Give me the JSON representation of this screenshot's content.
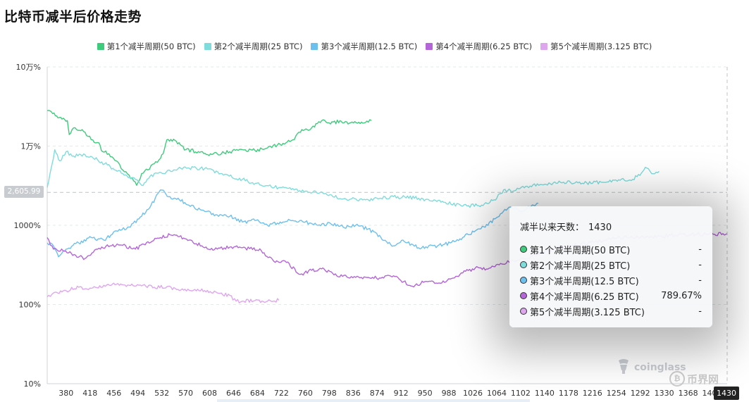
{
  "title": "比特币减半后价格走势",
  "legend": [
    {
      "label": "第1个减半周期(50 BTC)",
      "color": "#3ecb7c"
    },
    {
      "label": "第2个减半周期(25 BTC)",
      "color": "#7fdcdc"
    },
    {
      "label": "第3个减半周期(12.5 BTC)",
      "color": "#6cc0ee"
    },
    {
      "label": "第4个减半周期(6.25 BTC)",
      "color": "#b565d9"
    },
    {
      "label": "第5个减半周期(3.125 BTC)",
      "color": "#dfa6f0"
    }
  ],
  "y_cross_label": "2,605.99",
  "x_cross_label": "1430",
  "tooltip": {
    "header_label": "减半以来天数：",
    "header_value": "1430",
    "rows": [
      {
        "name": "第1个减半周期(50 BTC)",
        "value": "-",
        "color": "#3ecb7c"
      },
      {
        "name": "第2个减半周期(25 BTC)",
        "value": "-",
        "color": "#7fdcdc"
      },
      {
        "name": "第3个减半周期(12.5 BTC)",
        "value": "-",
        "color": "#6cc0ee"
      },
      {
        "name": "第4个减半周期(6.25 BTC)",
        "value": "789.67%",
        "color": "#b565d9"
      },
      {
        "name": "第5个减半周期(3.125 BTC)",
        "value": "-",
        "color": "#dfa6f0"
      }
    ]
  },
  "watermark": {
    "text": "coinglass",
    "text2": "币界网"
  },
  "chart_data": {
    "type": "line",
    "y_scale": "log",
    "ylim": [
      10,
      100000
    ],
    "xlim": [
      350,
      1430
    ],
    "x_ticks": [
      "380",
      "418",
      "456",
      "494",
      "532",
      "570",
      "608",
      "646",
      "684",
      "722",
      "760",
      "798",
      "836",
      "874",
      "912",
      "950",
      "988",
      "1026",
      "1064",
      "1102",
      "1140",
      "1178",
      "1216",
      "1254",
      "1292",
      "1330",
      "1368",
      "1406",
      "1430"
    ],
    "y_ticks": [
      {
        "value": 100000,
        "label": "10万%"
      },
      {
        "value": 10000,
        "label": "1万%"
      },
      {
        "value": 1000,
        "label": "1000%"
      },
      {
        "value": 100,
        "label": "100%"
      },
      {
        "value": 10,
        "label": "10%"
      }
    ],
    "series": [
      {
        "name": "第1个减半周期(50 BTC)",
        "color": "#3ecb7c",
        "points": [
          [
            350,
            28000
          ],
          [
            365,
            24000
          ],
          [
            382,
            21000
          ],
          [
            385,
            14000
          ],
          [
            392,
            17000
          ],
          [
            410,
            15000
          ],
          [
            420,
            12000
          ],
          [
            432,
            11000
          ],
          [
            438,
            8500
          ],
          [
            448,
            8000
          ],
          [
            460,
            6500
          ],
          [
            470,
            5000
          ],
          [
            480,
            4300
          ],
          [
            492,
            3200
          ],
          [
            500,
            4500
          ],
          [
            510,
            5000
          ],
          [
            520,
            6000
          ],
          [
            530,
            7000
          ],
          [
            536,
            9000
          ],
          [
            540,
            12000
          ],
          [
            555,
            11500
          ],
          [
            570,
            9000
          ],
          [
            590,
            8500
          ],
          [
            605,
            7800
          ],
          [
            620,
            8000
          ],
          [
            640,
            8500
          ],
          [
            660,
            9000
          ],
          [
            680,
            8800
          ],
          [
            700,
            9500
          ],
          [
            720,
            10500
          ],
          [
            740,
            12000
          ],
          [
            750,
            15000
          ],
          [
            770,
            17000
          ],
          [
            786,
            21000
          ],
          [
            800,
            19000
          ],
          [
            815,
            21000
          ],
          [
            830,
            19500
          ],
          [
            845,
            20000
          ],
          [
            860,
            20000
          ],
          [
            865,
            21000
          ]
        ]
      },
      {
        "name": "第2个减半周期(25 BTC)",
        "color": "#7fdcdc",
        "points": [
          [
            350,
            3000
          ],
          [
            362,
            9000
          ],
          [
            370,
            6500
          ],
          [
            380,
            8500
          ],
          [
            392,
            7500
          ],
          [
            410,
            7800
          ],
          [
            430,
            6700
          ],
          [
            450,
            5500
          ],
          [
            470,
            4500
          ],
          [
            490,
            3800
          ],
          [
            500,
            3200
          ],
          [
            520,
            4500
          ],
          [
            535,
            4500
          ],
          [
            560,
            5400
          ],
          [
            600,
            5200
          ],
          [
            630,
            4300
          ],
          [
            660,
            3800
          ],
          [
            690,
            3200
          ],
          [
            720,
            3000
          ],
          [
            760,
            2700
          ],
          [
            790,
            2500
          ],
          [
            820,
            2150
          ],
          [
            860,
            2100
          ],
          [
            900,
            2300
          ],
          [
            940,
            2200
          ],
          [
            980,
            1950
          ],
          [
            1010,
            1750
          ],
          [
            1040,
            1800
          ],
          [
            1060,
            2100
          ],
          [
            1075,
            2800
          ],
          [
            1090,
            2700
          ],
          [
            1110,
            3100
          ],
          [
            1140,
            3300
          ],
          [
            1170,
            3500
          ],
          [
            1200,
            3400
          ],
          [
            1230,
            3500
          ],
          [
            1260,
            3700
          ],
          [
            1280,
            3800
          ],
          [
            1296,
            4800
          ],
          [
            1300,
            5400
          ],
          [
            1310,
            4500
          ],
          [
            1322,
            4800
          ]
        ]
      },
      {
        "name": "第3个减半周期(12.5 BTC)",
        "color": "#6cc0ee",
        "points": [
          [
            350,
            600
          ],
          [
            360,
            550
          ],
          [
            368,
            400
          ],
          [
            380,
            500
          ],
          [
            400,
            600
          ],
          [
            420,
            700
          ],
          [
            440,
            650
          ],
          [
            460,
            850
          ],
          [
            480,
            950
          ],
          [
            500,
            1300
          ],
          [
            515,
            1800
          ],
          [
            530,
            2800
          ],
          [
            545,
            2300
          ],
          [
            560,
            2100
          ],
          [
            575,
            1800
          ],
          [
            600,
            1500
          ],
          [
            620,
            1350
          ],
          [
            640,
            1300
          ],
          [
            660,
            1100
          ],
          [
            680,
            1150
          ],
          [
            700,
            1000
          ],
          [
            720,
            1100
          ],
          [
            740,
            1150
          ],
          [
            760,
            1100
          ],
          [
            780,
            1000
          ],
          [
            800,
            1050
          ],
          [
            820,
            950
          ],
          [
            840,
            1000
          ],
          [
            860,
            900
          ],
          [
            880,
            700
          ],
          [
            900,
            550
          ],
          [
            915,
            650
          ],
          [
            940,
            520
          ],
          [
            970,
            550
          ],
          [
            990,
            600
          ],
          [
            1010,
            700
          ],
          [
            1030,
            850
          ],
          [
            1050,
            1000
          ],
          [
            1070,
            1400
          ],
          [
            1086,
            1700
          ],
          [
            1100,
            1500
          ],
          [
            1112,
            1650
          ],
          [
            1130,
            1900
          ]
        ]
      },
      {
        "name": "第4个减半周期(6.25 BTC)",
        "color": "#b565d9",
        "points": [
          [
            350,
            700
          ],
          [
            360,
            500
          ],
          [
            375,
            480
          ],
          [
            395,
            420
          ],
          [
            410,
            380
          ],
          [
            430,
            500
          ],
          [
            450,
            550
          ],
          [
            470,
            560
          ],
          [
            490,
            500
          ],
          [
            510,
            620
          ],
          [
            530,
            700
          ],
          [
            545,
            760
          ],
          [
            560,
            720
          ],
          [
            580,
            640
          ],
          [
            600,
            520
          ],
          [
            620,
            500
          ],
          [
            640,
            530
          ],
          [
            660,
            520
          ],
          [
            690,
            480
          ],
          [
            710,
            350
          ],
          [
            730,
            340
          ],
          [
            752,
            240
          ],
          [
            770,
            270
          ],
          [
            790,
            280
          ],
          [
            810,
            230
          ],
          [
            840,
            220
          ],
          [
            860,
            220
          ],
          [
            880,
            215
          ],
          [
            900,
            230
          ],
          [
            930,
            170
          ],
          [
            950,
            195
          ],
          [
            970,
            185
          ],
          [
            990,
            210
          ],
          [
            1010,
            250
          ],
          [
            1030,
            290
          ],
          [
            1050,
            280
          ],
          [
            1070,
            330
          ],
          [
            1100,
            360
          ],
          [
            1140,
            460
          ],
          [
            1180,
            550
          ],
          [
            1220,
            620
          ],
          [
            1260,
            700
          ],
          [
            1300,
            700
          ],
          [
            1340,
            750
          ],
          [
            1380,
            770
          ],
          [
            1410,
            770
          ],
          [
            1430,
            790
          ]
        ]
      },
      {
        "name": "第5个减半周期(3.125 BTC)",
        "color": "#dfa6f0",
        "points": [
          [
            350,
            125
          ],
          [
            360,
            140
          ],
          [
            380,
            150
          ],
          [
            400,
            165
          ],
          [
            420,
            160
          ],
          [
            440,
            175
          ],
          [
            460,
            180
          ],
          [
            480,
            175
          ],
          [
            500,
            172
          ],
          [
            520,
            165
          ],
          [
            540,
            168
          ],
          [
            560,
            150
          ],
          [
            580,
            148
          ],
          [
            600,
            150
          ],
          [
            620,
            140
          ],
          [
            640,
            130
          ],
          [
            650,
            110
          ],
          [
            660,
            110
          ],
          [
            680,
            112
          ],
          [
            700,
            110
          ],
          [
            718,
            113
          ]
        ]
      }
    ]
  }
}
